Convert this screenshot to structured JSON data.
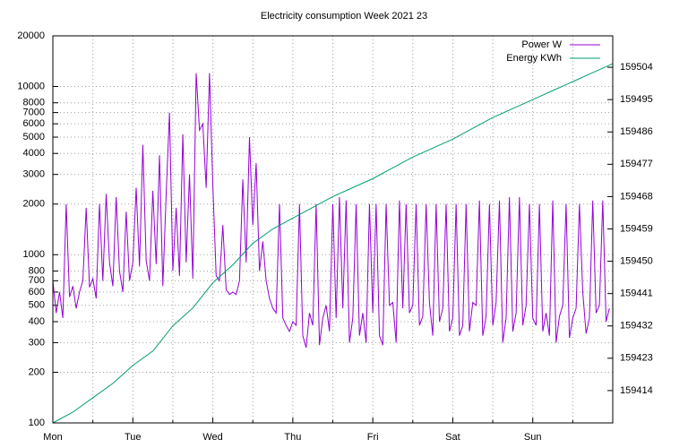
{
  "chart_data": {
    "type": "line",
    "title": "Electricity consumption Week 2021 23",
    "xlim": [
      0,
      168
    ],
    "xticks": [
      {
        "value": 0,
        "label": "Mon"
      },
      {
        "value": 24,
        "label": "Tue"
      },
      {
        "value": 48,
        "label": "Wed"
      },
      {
        "value": 72,
        "label": "Thu"
      },
      {
        "value": 96,
        "label": "Fri"
      },
      {
        "value": 120,
        "label": "Sat"
      },
      {
        "value": 144,
        "label": "Sun"
      }
    ],
    "xminor_ticks": [
      12,
      36,
      60,
      84,
      108,
      132,
      156
    ],
    "ylog": true,
    "ylim": [
      100,
      20000
    ],
    "yticks": [
      100,
      200,
      300,
      400,
      500,
      600,
      700,
      800,
      1000,
      2000,
      3000,
      4000,
      5000,
      6000,
      7000,
      8000,
      10000,
      20000
    ],
    "y2lim": [
      159405,
      159512.75
    ],
    "y2ticks": [
      159414,
      159423,
      159432,
      159441,
      159450,
      159459,
      159468,
      159477,
      159486,
      159495,
      159504
    ],
    "grid": true,
    "legend": "top right",
    "series": [
      {
        "name": "Power W",
        "color": "#9400d3",
        "x": [
          0,
          1,
          2,
          3,
          4,
          5,
          6,
          7,
          8,
          9,
          10,
          11,
          12,
          13,
          14,
          15,
          16,
          17,
          18,
          19,
          20,
          21,
          22,
          23,
          24,
          25,
          26,
          27,
          28,
          29,
          30,
          31,
          32,
          33,
          34,
          35,
          36,
          37,
          38,
          39,
          40,
          41,
          42,
          43,
          44,
          45,
          46,
          47,
          48,
          49,
          50,
          51,
          52,
          53,
          54,
          55,
          56,
          57,
          58,
          59,
          60,
          61,
          62,
          63,
          64,
          65,
          66,
          67,
          68,
          69,
          70,
          71,
          72,
          73,
          74,
          75,
          76,
          77,
          78,
          79,
          80,
          81,
          82,
          83,
          84,
          85,
          86,
          87,
          88,
          89,
          90,
          91,
          92,
          93,
          94,
          95,
          96,
          97,
          98,
          99,
          100,
          101,
          102,
          103,
          104,
          105,
          106,
          107,
          108,
          109,
          110,
          111,
          112,
          113,
          114,
          115,
          116,
          117,
          118,
          119,
          120,
          121,
          122,
          123,
          124,
          125,
          126,
          127,
          128,
          129,
          130,
          131,
          132,
          133,
          134,
          135,
          136,
          137,
          138,
          139,
          140,
          141,
          142,
          143,
          144,
          145,
          146,
          147,
          148,
          149,
          150,
          151,
          152,
          153,
          154,
          155,
          156,
          157,
          158,
          159,
          160,
          161,
          162,
          163,
          164,
          165,
          166,
          167
        ],
        "values": [
          700,
          450,
          600,
          420,
          2000,
          560,
          650,
          480,
          600,
          700,
          1900,
          640,
          720,
          550,
          2000,
          700,
          2300,
          900,
          650,
          2200,
          800,
          600,
          1800,
          700,
          900,
          2500,
          850,
          4500,
          920,
          700,
          2400,
          880,
          3900,
          650,
          2300,
          7000,
          800,
          1900,
          750,
          5200,
          900,
          3000,
          720,
          12000,
          5500,
          6000,
          2500,
          12000,
          2600,
          750,
          700,
          1500,
          620,
          580,
          600,
          580,
          700,
          2800,
          900,
          5000,
          1500,
          3500,
          800,
          1200,
          700,
          550,
          480,
          450,
          2000,
          420,
          380,
          350,
          400,
          380,
          2000,
          330,
          280,
          450,
          380,
          2000,
          290,
          420,
          500,
          350,
          2000,
          420,
          2200,
          480,
          2100,
          300,
          420,
          2000,
          330,
          450,
          300,
          2000,
          450,
          2000,
          330,
          290,
          2000,
          500,
          520,
          300,
          2100,
          480,
          2000,
          450,
          500,
          2000,
          380,
          430,
          2000,
          520,
          330,
          2000,
          400,
          480,
          2000,
          350,
          420,
          2000,
          330,
          380,
          2000,
          350,
          520,
          500,
          2100,
          330,
          430,
          2000,
          380,
          520,
          2100,
          300,
          420,
          2200,
          350,
          450,
          2200,
          380,
          500,
          2000,
          420,
          380,
          2000,
          350,
          450,
          330,
          2100,
          300,
          430,
          500,
          2000,
          320,
          420,
          480,
          2000,
          600,
          340,
          420,
          2100,
          450,
          500,
          2100,
          400,
          480
        ]
      },
      {
        "name": "Energy KWh",
        "color": "#009e73",
        "axis": "y2",
        "x": [
          0,
          6,
          12,
          18,
          24,
          30,
          36,
          42,
          48,
          54,
          60,
          66,
          72,
          78,
          84,
          90,
          96,
          102,
          108,
          114,
          120,
          126,
          132,
          138,
          144,
          150,
          156,
          162,
          168
        ],
        "values": [
          159405,
          159408,
          159412,
          159416,
          159421,
          159425,
          159432,
          159437,
          159444,
          159449,
          159455,
          159459,
          159462,
          159465,
          159468,
          159470.5,
          159473,
          159476,
          159479,
          159481.5,
          159484,
          159487,
          159490,
          159492.5,
          159495,
          159497.5,
          159500,
          159502.5,
          159505
        ]
      }
    ]
  }
}
